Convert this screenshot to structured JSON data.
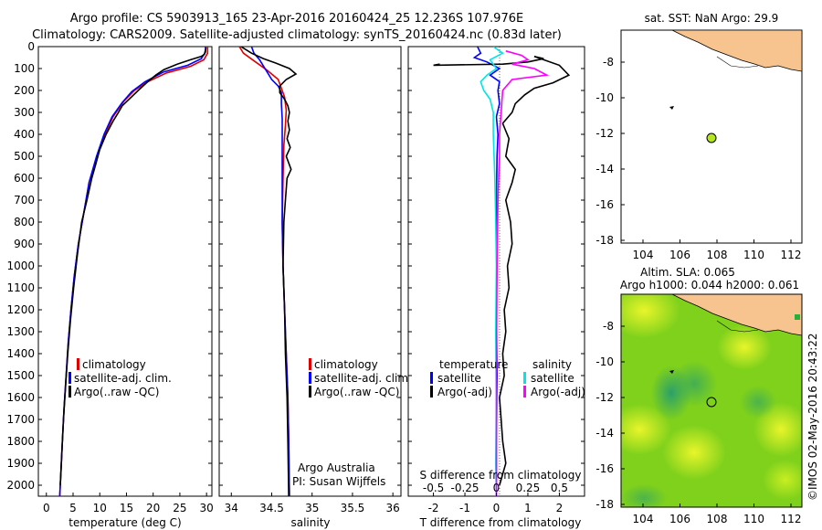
{
  "header": {
    "title_line1": "Argo profile: CS 5903913_165 23-Apr-2016 20160424_25 12.236S 107.976E",
    "title_line2": "Climatology: CARS2009. Satellite-adjusted climatology: synTS_20160424.nc (0.83d later)"
  },
  "colors": {
    "climatology": "#e00000",
    "satellite": "#0000ff",
    "argo": "#000000",
    "salinity_sat": "#00e5e5",
    "salinity_argo": "#ff00ff",
    "land": "#f7c38e",
    "argo_marker": "#b5e61d"
  },
  "depth_axis": {
    "ticks": [
      0,
      100,
      200,
      300,
      400,
      500,
      600,
      700,
      800,
      900,
      1000,
      1100,
      1200,
      1300,
      1400,
      1500,
      1600,
      1700,
      1800,
      1900,
      2000
    ],
    "range": [
      0,
      2050
    ]
  },
  "chart_data": [
    {
      "type": "line",
      "id": "temperature",
      "xlabel": "temperature (deg C)",
      "xticks": [
        0,
        5,
        10,
        15,
        20,
        25,
        30
      ],
      "xlim": [
        -1.5,
        31
      ],
      "legend": [
        "climatology",
        "satellite-adj. clim.",
        "Argo(..raw -QC)"
      ],
      "series": [
        {
          "name": "climatology",
          "color": "#e00000",
          "points": [
            [
              30.2,
              0
            ],
            [
              30.2,
              30
            ],
            [
              29.5,
              60
            ],
            [
              27,
              90
            ],
            [
              22.5,
              120
            ],
            [
              19,
              160
            ],
            [
              16.5,
              200
            ],
            [
              14.5,
              250
            ],
            [
              12.5,
              320
            ],
            [
              11,
              400
            ],
            [
              9.5,
              500
            ],
            [
              8,
              620
            ],
            [
              7,
              760
            ],
            [
              6,
              900
            ],
            [
              5.2,
              1050
            ],
            [
              4.6,
              1200
            ],
            [
              4.1,
              1350
            ],
            [
              3.7,
              1500
            ],
            [
              3.3,
              1650
            ],
            [
              3.0,
              1800
            ],
            [
              2.7,
              1950
            ],
            [
              2.5,
              2050
            ]
          ]
        },
        {
          "name": "satellite-adj. clim.",
          "color": "#0000ff",
          "points": [
            [
              29.8,
              0
            ],
            [
              29.8,
              25
            ],
            [
              29,
              55
            ],
            [
              26.5,
              85
            ],
            [
              22,
              115
            ],
            [
              18.5,
              160
            ],
            [
              16,
              205
            ],
            [
              14.2,
              255
            ],
            [
              12.3,
              320
            ],
            [
              10.8,
              400
            ],
            [
              9.4,
              500
            ],
            [
              8,
              620
            ],
            [
              7,
              760
            ],
            [
              6,
              900
            ],
            [
              5.2,
              1050
            ],
            [
              4.6,
              1200
            ],
            [
              4.1,
              1350
            ],
            [
              3.7,
              1500
            ],
            [
              3.3,
              1650
            ],
            [
              3.0,
              1800
            ],
            [
              2.7,
              1950
            ],
            [
              2.5,
              2050
            ]
          ]
        },
        {
          "name": "Argo(..raw -QC)",
          "color": "#000000",
          "points": [
            [
              29.9,
              5
            ],
            [
              29.6,
              35
            ],
            [
              29,
              45
            ],
            [
              27,
              60
            ],
            [
              24.5,
              80
            ],
            [
              22,
              105
            ],
            [
              20.5,
              130
            ],
            [
              19,
              160
            ],
            [
              17.2,
              200
            ],
            [
              15.5,
              240
            ],
            [
              14.2,
              270
            ],
            [
              13.5,
              300
            ],
            [
              12.5,
              340
            ],
            [
              11.2,
              400
            ],
            [
              10,
              470
            ],
            [
              9.2,
              540
            ],
            [
              8.5,
              600
            ],
            [
              7.6,
              700
            ],
            [
              6.6,
              800
            ],
            [
              5.8,
              950
            ],
            [
              5.1,
              1100
            ],
            [
              4.5,
              1250
            ],
            [
              4.0,
              1400
            ],
            [
              3.6,
              1550
            ],
            [
              3.2,
              1700
            ],
            [
              2.9,
              1850
            ],
            [
              2.6,
              2000
            ]
          ]
        }
      ]
    },
    {
      "type": "line",
      "id": "salinity",
      "xlabel": "salinity",
      "xticks": [
        34,
        34.5,
        35,
        35.5,
        36
      ],
      "xlim": [
        33.85,
        36.1
      ],
      "legend": [
        "climatology",
        "satellite-adj. clim.",
        "Argo(..raw -QC)"
      ],
      "series": [
        {
          "name": "climatology",
          "color": "#e00000",
          "points": [
            [
              34.1,
              0
            ],
            [
              34.15,
              30
            ],
            [
              34.3,
              70
            ],
            [
              34.45,
              110
            ],
            [
              34.58,
              150
            ],
            [
              34.62,
              190
            ],
            [
              34.66,
              230
            ],
            [
              34.68,
              290
            ],
            [
              34.67,
              360
            ],
            [
              34.65,
              450
            ],
            [
              34.64,
              600
            ],
            [
              34.63,
              800
            ],
            [
              34.64,
              1000
            ],
            [
              34.66,
              1200
            ],
            [
              34.68,
              1400
            ],
            [
              34.7,
              1600
            ],
            [
              34.71,
              1800
            ],
            [
              34.72,
              2050
            ]
          ]
        },
        {
          "name": "satellite-adj. clim.",
          "color": "#0000ff",
          "points": [
            [
              34.25,
              0
            ],
            [
              34.28,
              30
            ],
            [
              34.35,
              60
            ],
            [
              34.4,
              90
            ],
            [
              34.45,
              120
            ],
            [
              34.5,
              150
            ],
            [
              34.58,
              180
            ],
            [
              34.62,
              210
            ],
            [
              34.62,
              260
            ],
            [
              34.63,
              330
            ],
            [
              34.63,
              450
            ],
            [
              34.63,
              600
            ],
            [
              34.63,
              800
            ],
            [
              34.64,
              1000
            ],
            [
              34.66,
              1200
            ],
            [
              34.68,
              1400
            ],
            [
              34.7,
              1600
            ],
            [
              34.71,
              1800
            ],
            [
              34.72,
              2050
            ]
          ]
        },
        {
          "name": "Argo(..raw -QC)",
          "color": "#000000",
          "points": [
            [
              34.12,
              0
            ],
            [
              34.25,
              30
            ],
            [
              34.4,
              55
            ],
            [
              34.55,
              75
            ],
            [
              34.72,
              100
            ],
            [
              34.8,
              125
            ],
            [
              34.68,
              150
            ],
            [
              34.6,
              180
            ],
            [
              34.6,
              210
            ],
            [
              34.66,
              240
            ],
            [
              34.7,
              270
            ],
            [
              34.72,
              300
            ],
            [
              34.7,
              340
            ],
            [
              34.72,
              380
            ],
            [
              34.69,
              420
            ],
            [
              34.73,
              460
            ],
            [
              34.68,
              500
            ],
            [
              34.74,
              560
            ],
            [
              34.69,
              600
            ],
            [
              34.67,
              700
            ],
            [
              34.65,
              800
            ],
            [
              34.64,
              1000
            ],
            [
              34.66,
              1200
            ],
            [
              34.67,
              1400
            ],
            [
              34.69,
              1600
            ],
            [
              34.7,
              1800
            ],
            [
              34.71,
              2050
            ]
          ]
        }
      ]
    },
    {
      "type": "line",
      "id": "difference",
      "xlabel": "T difference from climatology",
      "xlabel_top": "S difference from climatology",
      "xticks": [
        -2,
        -1,
        0,
        1,
        2
      ],
      "xticks_top": [
        {
          "label": "-0.5",
          "t": -2
        },
        {
          "label": "-0.25",
          "t": -1
        },
        {
          "label": "0",
          "t": 0
        },
        {
          "label": "0.25",
          "t": 1
        },
        {
          "label": "0.5",
          "t": 2
        }
      ],
      "xlim": [
        -2.8,
        2.8
      ],
      "legend_temp_title": "temperature",
      "legend_sal_title": "salinity",
      "legend_temp": [
        "satellite",
        "Argo(-adj)"
      ],
      "legend_sal": [
        "satellite",
        "Argo(-adj)"
      ],
      "series": [
        {
          "name": "temperature satellite",
          "color": "#0000ff",
          "points": [
            [
              -0.6,
              0
            ],
            [
              -0.5,
              30
            ],
            [
              -0.7,
              50
            ],
            [
              -0.3,
              70
            ],
            [
              0.1,
              100
            ],
            [
              -0.2,
              130
            ],
            [
              0.1,
              160
            ],
            [
              0.05,
              200
            ],
            [
              0.1,
              260
            ],
            [
              0.0,
              320
            ],
            [
              0.05,
              400
            ],
            [
              0.02,
              500
            ],
            [
              0.0,
              700
            ],
            [
              0.02,
              900
            ],
            [
              0.0,
              1200
            ],
            [
              0.02,
              1500
            ],
            [
              0.0,
              1800
            ],
            [
              0.0,
              2050
            ]
          ]
        },
        {
          "name": "temperature Argo(-adj)",
          "color": "#000000",
          "points": [
            [
              -1.8,
              80
            ],
            [
              -2.0,
              85
            ],
            [
              0.2,
              80
            ],
            [
              1.0,
              70
            ],
            [
              1.5,
              55
            ],
            [
              1.2,
              45
            ],
            [
              2.0,
              85
            ],
            [
              2.3,
              130
            ],
            [
              1.8,
              165
            ],
            [
              1.2,
              190
            ],
            [
              0.9,
              220
            ],
            [
              0.6,
              260
            ],
            [
              0.5,
              300
            ],
            [
              0.2,
              350
            ],
            [
              0.4,
              420
            ],
            [
              0.3,
              500
            ],
            [
              0.6,
              560
            ],
            [
              0.5,
              620
            ],
            [
              0.3,
              700
            ],
            [
              0.45,
              800
            ],
            [
              0.5,
              900
            ],
            [
              0.35,
              1000
            ],
            [
              0.4,
              1100
            ],
            [
              0.25,
              1200
            ],
            [
              0.3,
              1300
            ],
            [
              0.2,
              1400
            ],
            [
              0.25,
              1500
            ],
            [
              0.1,
              1600
            ],
            [
              0.15,
              1700
            ],
            [
              0.2,
              1800
            ],
            [
              0.3,
              1900
            ],
            [
              0.1,
              2000
            ]
          ]
        },
        {
          "name": "salinity satellite",
          "color": "#00e5e5",
          "points": [
            [
              -0.1,
              0
            ],
            [
              0.2,
              30
            ],
            [
              -0.2,
              60
            ],
            [
              0.0,
              100
            ],
            [
              -0.3,
              130
            ],
            [
              -0.5,
              160
            ],
            [
              -0.4,
              200
            ],
            [
              -0.2,
              240
            ],
            [
              -0.1,
              300
            ],
            [
              -0.1,
              400
            ],
            [
              -0.05,
              600
            ],
            [
              -0.02,
              800
            ],
            [
              0.0,
              1000
            ],
            [
              -0.02,
              1300
            ],
            [
              0.0,
              1600
            ],
            [
              -0.02,
              1900
            ],
            [
              0.0,
              2050
            ]
          ]
        },
        {
          "name": "salinity Argo(-adj)",
          "color": "#ff00ff",
          "points": [
            [
              0.3,
              20
            ],
            [
              0.8,
              40
            ],
            [
              1.0,
              60
            ],
            [
              0.5,
              80
            ],
            [
              1.2,
              100
            ],
            [
              1.6,
              130
            ],
            [
              0.5,
              150
            ],
            [
              0.2,
              200
            ],
            [
              0.15,
              300
            ],
            [
              0.1,
              400
            ],
            [
              0.1,
              500
            ],
            [
              0.05,
              700
            ],
            [
              0.02,
              1000
            ],
            [
              0.0,
              1500
            ],
            [
              0.0,
              2050
            ]
          ]
        }
      ]
    }
  ],
  "credits": {
    "line1": "Argo Australia",
    "line2": "PI: Susan Wijffels"
  },
  "map_top": {
    "title": "sat. SST: NaN Argo: 29.9",
    "xticks": [
      "104",
      "106",
      "108",
      "110",
      "112"
    ],
    "yticks": [
      "-8",
      "-10",
      "-12",
      "-14",
      "-16",
      "-18"
    ],
    "argo": {
      "lon": 108.0,
      "lat": -12.2
    },
    "float_marker": {
      "lon": 105.7,
      "lat": -10.5
    }
  },
  "map_bottom": {
    "title_line1": "Altim. SLA: 0.065",
    "title_line2": "Argo h1000: 0.044 h2000: 0.061",
    "xticks": [
      "104",
      "106",
      "108",
      "110",
      "112"
    ],
    "yticks": [
      "-8",
      "-10",
      "-12",
      "-14",
      "-16",
      "-18"
    ]
  },
  "timestamp": "©IMOS 02-May-2016 20:43:22"
}
